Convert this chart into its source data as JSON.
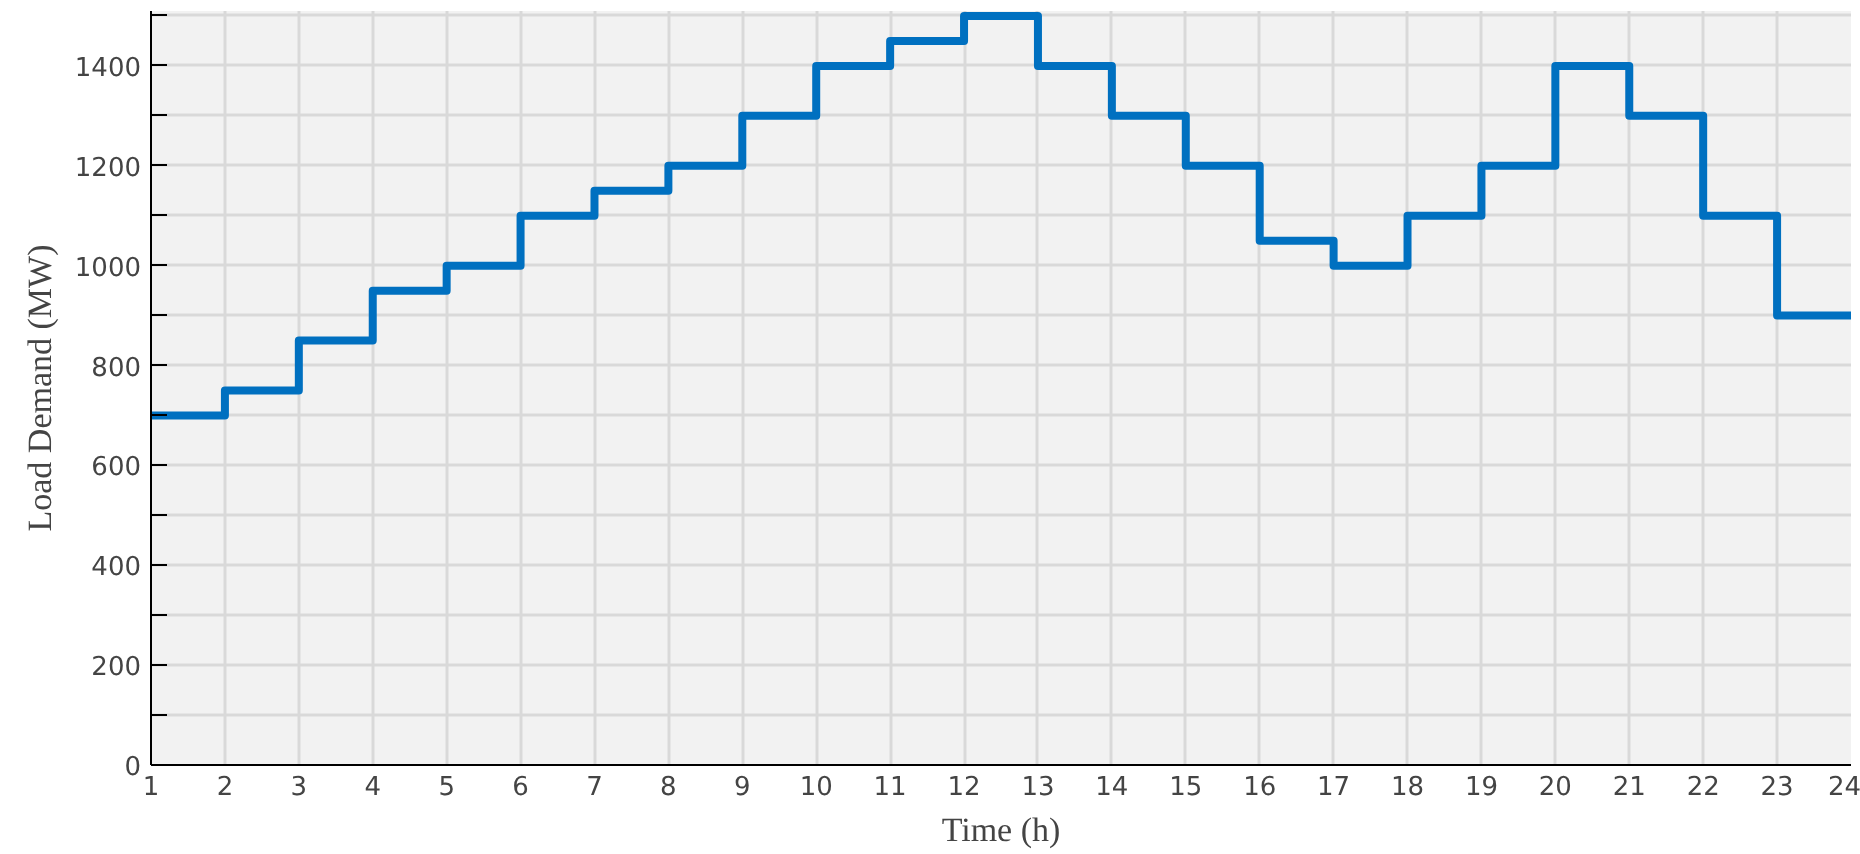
{
  "chart_data": {
    "type": "step",
    "xlabel": "Time (h)",
    "ylabel": "Load Demand (MW)",
    "x": [
      1,
      2,
      3,
      4,
      5,
      6,
      7,
      8,
      9,
      10,
      11,
      12,
      13,
      14,
      15,
      16,
      17,
      18,
      19,
      20,
      21,
      22,
      23,
      24
    ],
    "series": [
      {
        "color": "#0070c0",
        "values": [
          700,
          750,
          850,
          950,
          1000,
          1100,
          1150,
          1200,
          1300,
          1400,
          1450,
          1500,
          1400,
          1300,
          1200,
          1050,
          1000,
          1100,
          1200,
          1400,
          1300,
          1100,
          900,
          900
        ]
      }
    ],
    "xlim": [
      1,
      24
    ],
    "ylim": [
      0,
      1510
    ],
    "xticks": [
      1,
      2,
      3,
      4,
      5,
      6,
      7,
      8,
      9,
      10,
      11,
      12,
      13,
      14,
      15,
      16,
      17,
      18,
      19,
      20,
      21,
      22,
      23,
      24
    ],
    "yticks": [
      0,
      {
        "value": 100,
        "label": null
      },
      200,
      {
        "value": 300,
        "label": null
      },
      400,
      {
        "value": 500,
        "label": null
      },
      600,
      {
        "value": 700,
        "label": null
      },
      800,
      {
        "value": 900,
        "label": null
      },
      1000,
      {
        "value": 1100,
        "label": null
      },
      1200,
      {
        "value": 1300,
        "label": null
      },
      1400,
      {
        "value": 1500,
        "label": null
      }
    ],
    "grid": true
  }
}
